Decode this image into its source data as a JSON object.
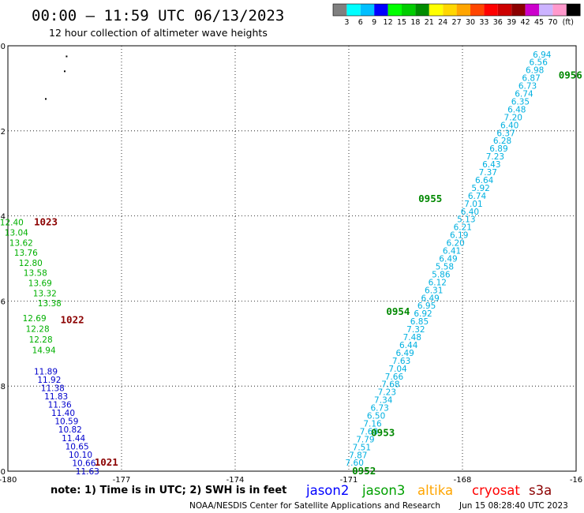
{
  "header": {
    "title": "00:00 – 11:59 UTC 06/13/2023",
    "subtitle": "12 hour collection of altimeter wave heights"
  },
  "colorbar": {
    "labels": [
      "3",
      "6",
      "9",
      "12",
      "15",
      "18",
      "21",
      "24",
      "27",
      "30",
      "33",
      "36",
      "39",
      "42",
      "45",
      "70"
    ],
    "unit": "(ft)",
    "colors": [
      "#808080",
      "#00ffff",
      "#00bfff",
      "#0000ff",
      "#00ff00",
      "#00cd00",
      "#008b00",
      "#ffff00",
      "#ffd700",
      "#ffa500",
      "#ff4500",
      "#ff0000",
      "#cd0000",
      "#8b0000",
      "#cc00cc",
      "#ccb3ff",
      "#ff99cc",
      "#000000"
    ]
  },
  "footer": {
    "note": "note:  1) Time is in UTC;  2) SWH is in feet",
    "satellites": [
      {
        "name": "jason2",
        "color": "#0000ff"
      },
      {
        "name": "jason3",
        "color": "#00a000"
      },
      {
        "name": "altika",
        "color": "#ffa500"
      },
      {
        "name": "cryosat",
        "color": "#ff0000"
      },
      {
        "name": "s3a",
        "color": "#8b0000"
      }
    ],
    "credit": "NOAA/NESDIS Center for Satellite Applications and Research",
    "generated": "Jun 15 08:28:40 UTC 2023"
  },
  "chart_data": {
    "type": "scatter",
    "xlim": [
      -180,
      -165
    ],
    "ylim": [
      -40,
      -30
    ],
    "x_ticks": [
      -177,
      -174,
      -171,
      -168
    ],
    "y_ticks": [
      -32,
      -34,
      -36,
      -38
    ],
    "x_tick_labels": [
      "-180",
      "-177",
      "-174",
      "-171",
      "-168",
      "-16"
    ],
    "y_tick_labels": [
      "-30",
      "-32",
      "-34",
      "-36",
      "-38",
      "-40"
    ],
    "grid": true,
    "tracks": [
      {
        "satellite": "jason3",
        "color": "#00b0e0",
        "start": [
          -170.85,
          -39.8
        ],
        "end": [
          -165.9,
          -30.2
        ],
        "values": [
          "7.60",
          "7.87",
          "7.51",
          "7.79",
          "7.68",
          "7.16",
          "6.50",
          "6.73",
          "7.34",
          "7.23",
          "7.68",
          "7.66",
          "7.04",
          "7.63",
          "6.49",
          "6.44",
          "7.48",
          "7.32",
          "6.85",
          "6.92",
          "6.95",
          "6.49",
          "6.31",
          "6.12",
          "5.86",
          "5.58",
          "6.49",
          "6.41",
          "6.20",
          "6.19",
          "6.21",
          "5.13",
          "6.40",
          "7.01",
          "6.74",
          "5.92",
          "6.64",
          "7.37",
          "6.43",
          "7.23",
          "6.89",
          "6.28",
          "6.37",
          "6.40",
          "7.20",
          "6.48",
          "6.35",
          "6.74",
          "6.73",
          "6.87",
          "6.98",
          "6.56",
          "6.94"
        ]
      },
      {
        "satellite": "s3a",
        "color": "#00b000",
        "start": [
          -179.9,
          -34.15
        ],
        "end": [
          -178.9,
          -36.05
        ],
        "values": [
          "12.40",
          "13.04",
          "13.62",
          "13.76",
          "12.80",
          "13.58",
          "13.69",
          "13.32",
          "13.38"
        ]
      },
      {
        "satellite": "s3a",
        "color": "#00b000",
        "start": [
          -179.3,
          -36.4
        ],
        "end": [
          -179.05,
          -37.15
        ],
        "values": [
          "12.69",
          "12.28",
          "12.28",
          "14.94"
        ]
      },
      {
        "satellite": "s3a",
        "color": "#0000cc",
        "start": [
          -179.0,
          -37.65
        ],
        "end": [
          -177.9,
          -40.0
        ],
        "values": [
          "11.89",
          "11.92",
          "11.38",
          "11.83",
          "11.36",
          "11.40",
          "10.59",
          "10.82",
          "11.44",
          "10.65",
          "10.10",
          "10.66",
          "11.63"
        ]
      }
    ],
    "pass_times": [
      {
        "label": "0956",
        "x": -165.15,
        "y": -30.7,
        "color": "#008800"
      },
      {
        "label": "0955",
        "x": -168.85,
        "y": -33.6,
        "color": "#008800"
      },
      {
        "label": "0954",
        "x": -169.7,
        "y": -36.25,
        "color": "#008800"
      },
      {
        "label": "0953",
        "x": -170.1,
        "y": -39.1,
        "color": "#008800"
      },
      {
        "label": "0952",
        "x": -170.6,
        "y": -40.0,
        "color": "#008800"
      },
      {
        "label": "1023",
        "x": -179.0,
        "y": -34.15,
        "color": "#8b0000"
      },
      {
        "label": "1022",
        "x": -178.3,
        "y": -36.45,
        "color": "#8b0000"
      },
      {
        "label": "1021",
        "x": -177.4,
        "y": -39.8,
        "color": "#8b0000"
      }
    ],
    "land_points": [
      [
        -178.45,
        -30.25
      ],
      [
        -178.5,
        -30.6
      ],
      [
        -179.0,
        -31.25
      ]
    ]
  }
}
